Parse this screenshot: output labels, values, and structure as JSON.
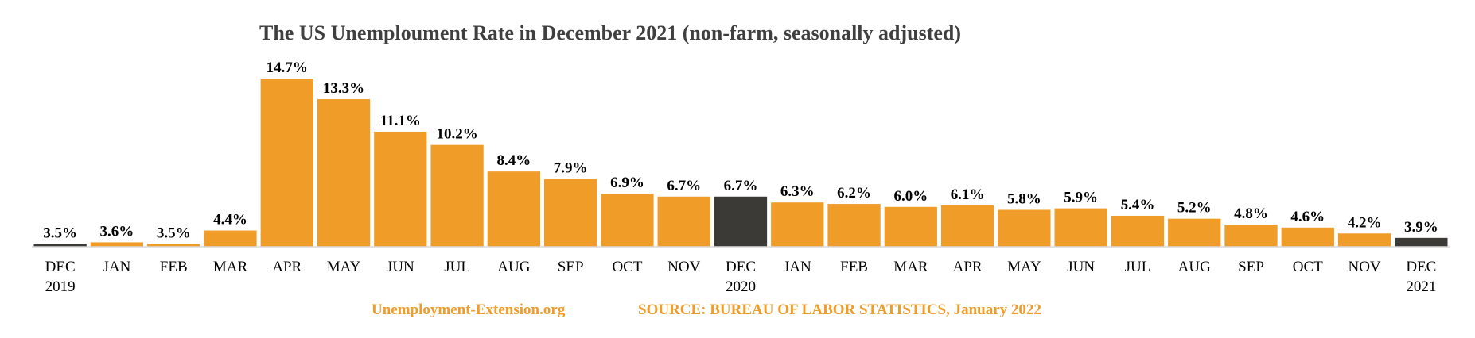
{
  "chart_data": {
    "type": "bar",
    "title": "The US Unemploument Rate in December 2021 (non-farm, seasonally adjusted)",
    "xlabel": "",
    "ylabel": "",
    "ylim": [
      3.3,
      14.7
    ],
    "categories": [
      [
        "DEC",
        "2019"
      ],
      [
        "JAN"
      ],
      [
        "FEB"
      ],
      [
        "MAR"
      ],
      [
        "APR"
      ],
      [
        "MAY"
      ],
      [
        "JUN"
      ],
      [
        "JUL"
      ],
      [
        "AUG"
      ],
      [
        "SEP"
      ],
      [
        "OCT"
      ],
      [
        "NOV"
      ],
      [
        "DEC",
        "2020"
      ],
      [
        "JAN"
      ],
      [
        "FEB"
      ],
      [
        "MAR"
      ],
      [
        "APR"
      ],
      [
        "MAY"
      ],
      [
        "JUN"
      ],
      [
        "JUL"
      ],
      [
        "AUG"
      ],
      [
        "SEP"
      ],
      [
        "OCT"
      ],
      [
        "NOV"
      ],
      [
        "DEC",
        "2021"
      ]
    ],
    "values": [
      3.5,
      3.6,
      3.5,
      4.4,
      14.7,
      13.3,
      11.1,
      10.2,
      8.4,
      7.9,
      6.9,
      6.7,
      6.7,
      6.3,
      6.2,
      6.0,
      6.1,
      5.8,
      5.9,
      5.4,
      5.2,
      4.8,
      4.6,
      4.2,
      3.9
    ],
    "data_labels": [
      "3.5%",
      "3.6%",
      "3.5%",
      "4.4%",
      "14.7%",
      "13.3%",
      "11.1%",
      "10.2%",
      "8.4%",
      "7.9%",
      "6.9%",
      "6.7%",
      "6.7%",
      "6.3%",
      "6.2%",
      "6.0%",
      "6.1%",
      "5.8%",
      "5.9%",
      "5.4%",
      "5.2%",
      "4.8%",
      "4.6%",
      "4.2%",
      "3.9%"
    ],
    "highlighted_indices": [
      0,
      12,
      24
    ],
    "colors": {
      "bar": "#F09C28",
      "highlight": "#3B3A36",
      "title": "#3f3f3f",
      "footer": "#F09C28",
      "axis": "#d9d9d9"
    },
    "grid": false,
    "legend": "none"
  },
  "footer": {
    "website": "Unemployment-Extension.org",
    "source": "SOURCE: BUREAU OF LABOR STATISTICS, January 2022"
  }
}
